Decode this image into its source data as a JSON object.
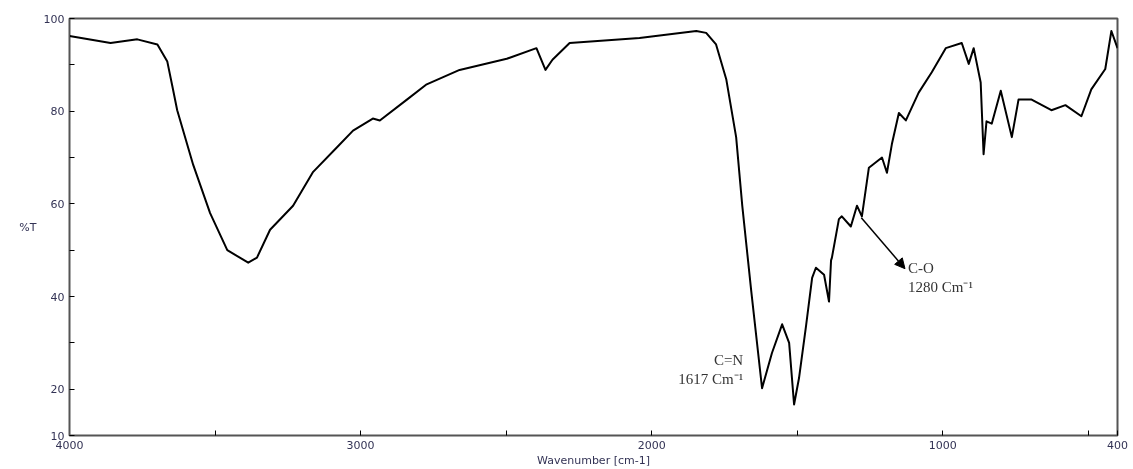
{
  "chart_data": {
    "type": "line",
    "xlabel": "Wavenumber [cm-1]",
    "ylabel": "%T",
    "x": [
      4000,
      3859,
      3767,
      3698,
      3664,
      3647,
      3630,
      3575,
      3517,
      3458,
      3386,
      3356,
      3311,
      3232,
      3163,
      3081,
      3026,
      2958,
      2934,
      2841,
      2773,
      2660,
      2498,
      2396,
      2365,
      2341,
      2282,
      2042,
      1847,
      1813,
      1779,
      1744,
      1710,
      1689,
      1658,
      1621,
      1587,
      1552,
      1528,
      1511,
      1494,
      1470,
      1449,
      1436,
      1408,
      1391,
      1384,
      1381,
      1357,
      1347,
      1316,
      1295,
      1278,
      1254,
      1209,
      1192,
      1175,
      1151,
      1127,
      1083,
      1038,
      990,
      935,
      911,
      894,
      870,
      860,
      850,
      832,
      801,
      763,
      740,
      695,
      627,
      579,
      524,
      490,
      442,
      421,
      400
    ],
    "series": [
      {
        "color": "#000000",
        "values": [
          96.2,
          94.7,
          95.5,
          94.4,
          90.7,
          85.5,
          80.2,
          68.4,
          58,
          50,
          47.3,
          48.4,
          54.4,
          59.6,
          66.9,
          72.2,
          75.8,
          78.4,
          78,
          82.5,
          85.8,
          88.9,
          91.3,
          93.6,
          88.9,
          91.1,
          94.7,
          95.8,
          97.3,
          96.9,
          94.4,
          86.9,
          74.4,
          59.6,
          41.1,
          20.2,
          27.8,
          34,
          30,
          16.7,
          22.4,
          33.6,
          44,
          46.2,
          44.7,
          38.9,
          47.8,
          48.4,
          56.7,
          57.3,
          55.1,
          59.6,
          57.3,
          67.8,
          70,
          66.7,
          72.9,
          79.6,
          78,
          84,
          88.4,
          93.6,
          94.7,
          90.2,
          93.6,
          86.2,
          70.7,
          77.8,
          77.3,
          84.4,
          74.4,
          82.5,
          82.5,
          80.2,
          81.3,
          78.9,
          84.7,
          89.1,
          97.3,
          93.6
        ]
      }
    ],
    "xlim": [
      4000,
      400
    ],
    "xticks": [
      4000,
      {
        "value": 3500,
        "label": null
      },
      3000,
      {
        "value": 2500,
        "label": null
      },
      2000,
      {
        "value": 1500,
        "label": null
      },
      1000,
      {
        "value": 500,
        "label": null
      },
      400
    ],
    "ylim": [
      10,
      100
    ],
    "yticks": [
      10,
      20,
      {
        "value": 30,
        "label": null
      },
      40,
      {
        "value": 50,
        "label": null
      },
      60,
      {
        "value": 70,
        "label": null
      },
      80,
      {
        "value": 90,
        "label": null
      },
      100
    ],
    "grid": false,
    "marker": "none",
    "line_style": "solid",
    "annotations": [
      {
        "text": "C=N\n1617 Cm⁻¹",
        "x": 1617,
        "y": 20
      },
      {
        "text": "C-O\n1280 Cm⁻¹",
        "x": 1280,
        "y": 57
      }
    ]
  }
}
